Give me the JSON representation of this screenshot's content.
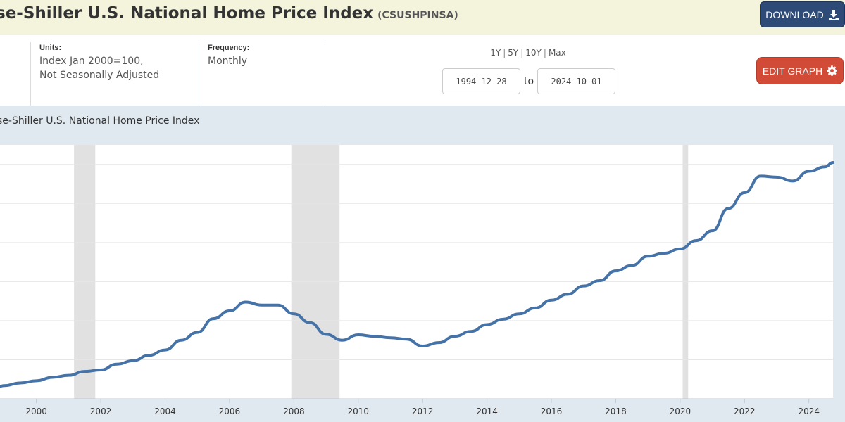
{
  "header": {
    "title": "Case-Shiller U.S. National Home Price Index",
    "title_visible": "se-Shiller U.S. National Home Price Index",
    "series_id": "(CSUSHPINSA)",
    "download_label": "DOWNLOAD"
  },
  "meta": {
    "units_label": "Units:",
    "units_line1": "Index Jan 2000=100,",
    "units_line2": "Not Seasonally Adjusted",
    "frequency_label": "Frequency:",
    "frequency_value": "Monthly"
  },
  "range": {
    "r1y": "1Y",
    "r5y": "5Y",
    "r10y": "10Y",
    "rmax": "Max",
    "sep": "|",
    "start_date": "1994-12-28",
    "to_label": "to",
    "end_date": "2024-10-01"
  },
  "edit_label": "EDIT GRAPH",
  "colors": {
    "line": "#4572a7",
    "recession": "#e1e1e1",
    "panel": "#e1e9f0",
    "download": "#2d4b76",
    "edit": "#d14b37"
  },
  "chart_data": {
    "type": "line",
    "title": "se-Shiller U.S. National Home Price Index",
    "xlabel": "",
    "ylabel": "",
    "x_ticks": [
      "2000",
      "2002",
      "2004",
      "2006",
      "2008",
      "2010",
      "2012",
      "2014",
      "2016",
      "2018",
      "2020",
      "2022",
      "2024"
    ],
    "xlim": [
      1998.87,
      2024.75
    ],
    "ylim": [
      80,
      340
    ],
    "grid": true,
    "recessions": [
      [
        2001.17,
        2001.83
      ],
      [
        2007.92,
        2009.42
      ],
      [
        2020.08,
        2020.25
      ]
    ],
    "series": [
      {
        "name": "CSUSHPINSA",
        "x": [
          1998.85,
          1999.0,
          1999.5,
          2000.0,
          2000.5,
          2001.0,
          2001.5,
          2002.0,
          2002.5,
          2003.0,
          2003.5,
          2004.0,
          2004.5,
          2005.0,
          2005.5,
          2006.0,
          2006.5,
          2007.0,
          2007.5,
          2008.0,
          2008.5,
          2009.0,
          2009.5,
          2010.0,
          2010.5,
          2011.0,
          2011.5,
          2012.0,
          2012.5,
          2013.0,
          2013.5,
          2014.0,
          2014.5,
          2015.0,
          2015.5,
          2016.0,
          2016.5,
          2017.0,
          2017.5,
          2018.0,
          2018.5,
          2019.0,
          2019.5,
          2020.0,
          2020.5,
          2021.0,
          2021.5,
          2022.0,
          2022.5,
          2023.0,
          2023.5,
          2024.0,
          2024.5,
          2024.75
        ],
        "values": [
          92.8,
          93.5,
          96.2,
          98.5,
          102.0,
          104.0,
          108.0,
          109.5,
          115.5,
          119.0,
          124.5,
          130.0,
          140.0,
          148.0,
          162.0,
          170.0,
          179.0,
          176.0,
          176.0,
          167.0,
          158.0,
          146.0,
          140.0,
          145.5,
          144.0,
          142.5,
          141.0,
          134.0,
          137.5,
          144.0,
          149.0,
          156.0,
          161.5,
          167.0,
          173.0,
          181.0,
          187.0,
          195.5,
          201.0,
          211.0,
          216.5,
          226.0,
          229.0,
          233.5,
          242.0,
          252.0,
          275.0,
          291.0,
          308.0,
          307.0,
          303.0,
          313.0,
          317.5,
          322.0
        ]
      }
    ]
  }
}
